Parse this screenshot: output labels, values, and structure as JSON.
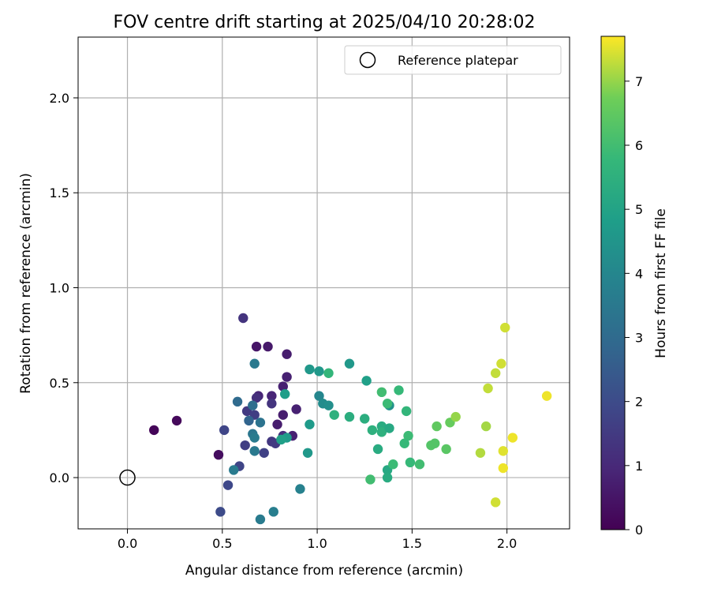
{
  "chart_data": {
    "type": "scatter",
    "title": "FOV centre drift starting at 2025/04/10 20:28:02",
    "xlabel": "Angular distance from reference (arcmin)",
    "ylabel": "Rotation from reference (arcmin)",
    "xlim": [
      -0.26,
      2.33
    ],
    "ylim": [
      -0.27,
      2.32
    ],
    "xticks": [
      "0.0",
      "0.5",
      "1.0",
      "1.5",
      "2.0"
    ],
    "xtick_values": [
      0.0,
      0.5,
      1.0,
      1.5,
      2.0
    ],
    "yticks": [
      "0.0",
      "0.5",
      "1.0",
      "1.5",
      "2.0"
    ],
    "ytick_values": [
      0.0,
      0.5,
      1.0,
      1.5,
      2.0
    ],
    "grid": true,
    "legend": {
      "placement": "top-right",
      "entries": [
        "Reference platepar"
      ]
    },
    "reference": {
      "x": 0.0,
      "y": 0.0
    },
    "colorbar": {
      "label": "Hours from first FF file",
      "colormap": "viridis",
      "range": [
        0,
        7.7
      ],
      "ticks": [
        "0",
        "1",
        "2",
        "3",
        "4",
        "5",
        "6",
        "7"
      ],
      "tick_values": [
        0,
        1,
        2,
        3,
        4,
        5,
        6,
        7
      ]
    },
    "points": [
      {
        "x": 0.14,
        "y": 0.25,
        "h": 0.1
      },
      {
        "x": 0.26,
        "y": 0.3,
        "h": 0.2
      },
      {
        "x": 0.48,
        "y": 0.12,
        "h": 0.3
      },
      {
        "x": 0.68,
        "y": 0.69,
        "h": 0.5
      },
      {
        "x": 0.74,
        "y": 0.69,
        "h": 0.6
      },
      {
        "x": 0.84,
        "y": 0.65,
        "h": 0.7
      },
      {
        "x": 0.84,
        "y": 0.53,
        "h": 0.8
      },
      {
        "x": 0.82,
        "y": 0.48,
        "h": 0.8
      },
      {
        "x": 0.76,
        "y": 0.43,
        "h": 0.9
      },
      {
        "x": 0.69,
        "y": 0.43,
        "h": 0.9
      },
      {
        "x": 0.89,
        "y": 0.36,
        "h": 0.8
      },
      {
        "x": 0.82,
        "y": 0.33,
        "h": 0.7
      },
      {
        "x": 0.79,
        "y": 0.28,
        "h": 0.7
      },
      {
        "x": 0.87,
        "y": 0.22,
        "h": 0.8
      },
      {
        "x": 0.61,
        "y": 0.84,
        "h": 1.3
      },
      {
        "x": 0.68,
        "y": 0.42,
        "h": 1.2
      },
      {
        "x": 0.76,
        "y": 0.39,
        "h": 1.3
      },
      {
        "x": 0.63,
        "y": 0.35,
        "h": 1.5
      },
      {
        "x": 0.67,
        "y": 0.33,
        "h": 1.6
      },
      {
        "x": 0.51,
        "y": 0.25,
        "h": 1.8
      },
      {
        "x": 0.82,
        "y": 0.22,
        "h": 1.2
      },
      {
        "x": 0.76,
        "y": 0.19,
        "h": 1.4
      },
      {
        "x": 0.62,
        "y": 0.17,
        "h": 1.6
      },
      {
        "x": 0.78,
        "y": 0.18,
        "h": 1.5
      },
      {
        "x": 0.72,
        "y": 0.13,
        "h": 1.7
      },
      {
        "x": 0.59,
        "y": 0.06,
        "h": 1.8
      },
      {
        "x": 0.53,
        "y": -0.04,
        "h": 1.9
      },
      {
        "x": 0.49,
        "y": -0.18,
        "h": 2.0
      },
      {
        "x": 0.58,
        "y": 0.4,
        "h": 3.0
      },
      {
        "x": 0.66,
        "y": 0.38,
        "h": 3.1
      },
      {
        "x": 0.67,
        "y": 0.6,
        "h": 3.5
      },
      {
        "x": 0.64,
        "y": 0.3,
        "h": 2.8
      },
      {
        "x": 0.7,
        "y": 0.29,
        "h": 3.3
      },
      {
        "x": 0.66,
        "y": 0.23,
        "h": 3.4
      },
      {
        "x": 0.67,
        "y": 0.21,
        "h": 3.6
      },
      {
        "x": 0.67,
        "y": 0.14,
        "h": 3.5
      },
      {
        "x": 0.56,
        "y": 0.04,
        "h": 3.6
      },
      {
        "x": 0.7,
        "y": -0.22,
        "h": 3.6
      },
      {
        "x": 0.77,
        "y": -0.18,
        "h": 3.7
      },
      {
        "x": 0.91,
        "y": -0.06,
        "h": 3.8
      },
      {
        "x": 0.96,
        "y": 0.57,
        "h": 4.6
      },
      {
        "x": 1.01,
        "y": 0.56,
        "h": 4.6
      },
      {
        "x": 1.17,
        "y": 0.6,
        "h": 4.6
      },
      {
        "x": 1.01,
        "y": 0.43,
        "h": 4.0
      },
      {
        "x": 1.03,
        "y": 0.39,
        "h": 4.2
      },
      {
        "x": 1.06,
        "y": 0.38,
        "h": 4.3
      },
      {
        "x": 1.38,
        "y": 0.38,
        "h": 4.4
      },
      {
        "x": 0.83,
        "y": 0.44,
        "h": 4.8
      },
      {
        "x": 1.26,
        "y": 0.51,
        "h": 4.9
      },
      {
        "x": 0.96,
        "y": 0.28,
        "h": 4.7
      },
      {
        "x": 0.84,
        "y": 0.21,
        "h": 4.7
      },
      {
        "x": 0.81,
        "y": 0.2,
        "h": 4.9
      },
      {
        "x": 0.95,
        "y": 0.13,
        "h": 4.6
      },
      {
        "x": 1.06,
        "y": 0.55,
        "h": 5.7
      },
      {
        "x": 1.09,
        "y": 0.33,
        "h": 5.5
      },
      {
        "x": 1.17,
        "y": 0.32,
        "h": 5.4
      },
      {
        "x": 1.25,
        "y": 0.31,
        "h": 5.4
      },
      {
        "x": 1.29,
        "y": 0.25,
        "h": 5.5
      },
      {
        "x": 1.34,
        "y": 0.27,
        "h": 5.3
      },
      {
        "x": 1.34,
        "y": 0.24,
        "h": 5.5
      },
      {
        "x": 1.38,
        "y": 0.26,
        "h": 5.2
      },
      {
        "x": 1.32,
        "y": 0.15,
        "h": 5.3
      },
      {
        "x": 1.37,
        "y": 0.04,
        "h": 5.2
      },
      {
        "x": 1.37,
        "y": 0.0,
        "h": 5.3
      },
      {
        "x": 1.28,
        "y": -0.01,
        "h": 6.0
      },
      {
        "x": 1.34,
        "y": 0.45,
        "h": 6.0
      },
      {
        "x": 1.37,
        "y": 0.39,
        "h": 5.9
      },
      {
        "x": 1.43,
        "y": 0.46,
        "h": 5.8
      },
      {
        "x": 1.47,
        "y": 0.35,
        "h": 5.7
      },
      {
        "x": 1.48,
        "y": 0.22,
        "h": 5.9
      },
      {
        "x": 1.46,
        "y": 0.18,
        "h": 5.8
      },
      {
        "x": 1.4,
        "y": 0.07,
        "h": 5.9
      },
      {
        "x": 1.49,
        "y": 0.08,
        "h": 5.8
      },
      {
        "x": 1.54,
        "y": 0.07,
        "h": 6.0
      },
      {
        "x": 1.6,
        "y": 0.17,
        "h": 6.3
      },
      {
        "x": 1.62,
        "y": 0.18,
        "h": 6.3
      },
      {
        "x": 1.63,
        "y": 0.27,
        "h": 6.5
      },
      {
        "x": 1.68,
        "y": 0.15,
        "h": 6.4
      },
      {
        "x": 1.7,
        "y": 0.29,
        "h": 6.6
      },
      {
        "x": 1.73,
        "y": 0.32,
        "h": 7.0
      },
      {
        "x": 1.86,
        "y": 0.13,
        "h": 7.2
      },
      {
        "x": 1.89,
        "y": 0.27,
        "h": 7.1
      },
      {
        "x": 1.9,
        "y": 0.47,
        "h": 7.3
      },
      {
        "x": 1.94,
        "y": 0.55,
        "h": 7.3
      },
      {
        "x": 1.97,
        "y": 0.6,
        "h": 7.4
      },
      {
        "x": 1.99,
        "y": 0.79,
        "h": 7.4
      },
      {
        "x": 1.94,
        "y": -0.13,
        "h": 7.4
      },
      {
        "x": 1.98,
        "y": 0.14,
        "h": 7.5
      },
      {
        "x": 1.98,
        "y": 0.05,
        "h": 7.6
      },
      {
        "x": 2.03,
        "y": 0.21,
        "h": 7.6
      },
      {
        "x": 2.21,
        "y": 0.43,
        "h": 7.6
      }
    ]
  }
}
